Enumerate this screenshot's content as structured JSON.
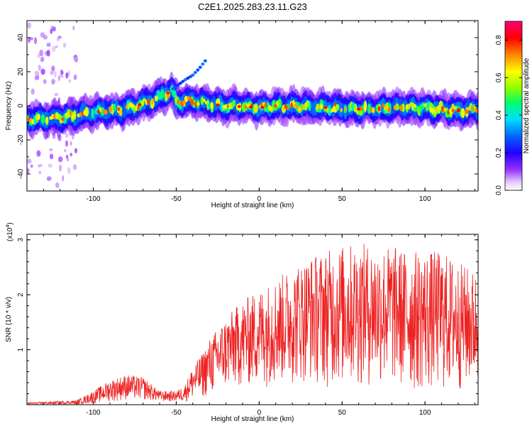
{
  "colors": {
    "snr_line": "#ee2222",
    "frame": "#000000",
    "colormap": [
      "#ffffff",
      "#cc99ff",
      "#8800ff",
      "#2200ff",
      "#0066ff",
      "#00ddff",
      "#00ff66",
      "#88ff00",
      "#ffff00",
      "#ff8800",
      "#ff0000",
      "#ff0066"
    ]
  },
  "chart_data": [
    {
      "type": "heatmap",
      "title": "C2E1.2025.283.23.11.G23",
      "xlabel": "Height of straight line (km)",
      "ylabel": "Frequency (Hz)",
      "xlim": [
        -140,
        132
      ],
      "ylim": [
        -50,
        50
      ],
      "xticks": [
        -100,
        -50,
        0,
        50,
        100
      ],
      "xtick_labels": [
        "-100",
        "-50",
        "0",
        "50",
        "100"
      ],
      "yticks": [
        -40,
        -20,
        0,
        20,
        40
      ],
      "ytick_labels": [
        "-40",
        "-20",
        "0",
        "20",
        "40"
      ],
      "colorbar": {
        "label": "Normalized spectral amplitude",
        "range": [
          0,
          0.9
        ],
        "ticks": [
          0,
          0.2,
          0.4,
          0.6,
          0.8
        ],
        "tick_labels": [
          "0.0",
          "0.2",
          "0.4",
          "0.6",
          "0.8"
        ]
      },
      "ridge": {
        "description_points_x": [
          -140,
          -120,
          -100,
          -80,
          -65,
          -52,
          -50,
          -40,
          -30,
          -20,
          0,
          20,
          40,
          60,
          80,
          100,
          120,
          132
        ],
        "frequency_hz": [
          -8,
          -7,
          -4,
          -2,
          3,
          9,
          2,
          3,
          1,
          0,
          -1,
          0,
          -1,
          -2,
          -1,
          -1,
          -3,
          -2
        ]
      },
      "branch": {
        "x": [
          -52,
          -45,
          -40,
          -36,
          -32
        ],
        "frequency_hz": [
          10,
          15,
          18,
          22,
          27
        ]
      }
    },
    {
      "type": "line",
      "title": "",
      "xlabel": "Height of straight line (km)",
      "ylabel": "SNR (10 * v/v)",
      "multiplier_label": "(x10",
      "multiplier_exp": "4",
      "multiplier_close": ")",
      "xlim": [
        -140,
        132
      ],
      "ylim": [
        0,
        3.1
      ],
      "xticks": [
        -100,
        -50,
        0,
        50,
        100
      ],
      "xtick_labels": [
        "-100",
        "-50",
        "0",
        "50",
        "100"
      ],
      "yticks": [
        1,
        2,
        3
      ],
      "ytick_labels": [
        "1",
        "2",
        "3"
      ],
      "envelope": {
        "x": [
          -140,
          -110,
          -100,
          -90,
          -80,
          -70,
          -60,
          -50,
          -45,
          -40,
          -35,
          -30,
          -25,
          -20,
          -10,
          0,
          10,
          20,
          30,
          40,
          50,
          60,
          70,
          80,
          90,
          100,
          110,
          120,
          132
        ],
        "upper": [
          0.04,
          0.08,
          0.25,
          0.45,
          0.55,
          0.5,
          0.25,
          0.25,
          0.35,
          0.7,
          0.9,
          1.2,
          1.4,
          1.6,
          1.9,
          2.1,
          2.3,
          2.5,
          2.7,
          2.8,
          2.9,
          2.95,
          2.9,
          2.9,
          2.8,
          2.8,
          2.8,
          2.6,
          2.4
        ],
        "lower": [
          0.0,
          0.0,
          0.02,
          0.05,
          0.08,
          0.08,
          0.05,
          0.05,
          0.05,
          0.08,
          0.1,
          0.15,
          0.2,
          0.25,
          0.3,
          0.3,
          0.35,
          0.35,
          0.4,
          0.3,
          0.3,
          0.3,
          0.3,
          0.3,
          0.2,
          0.2,
          0.2,
          0.2,
          0.3
        ]
      },
      "samples": 1400
    }
  ]
}
